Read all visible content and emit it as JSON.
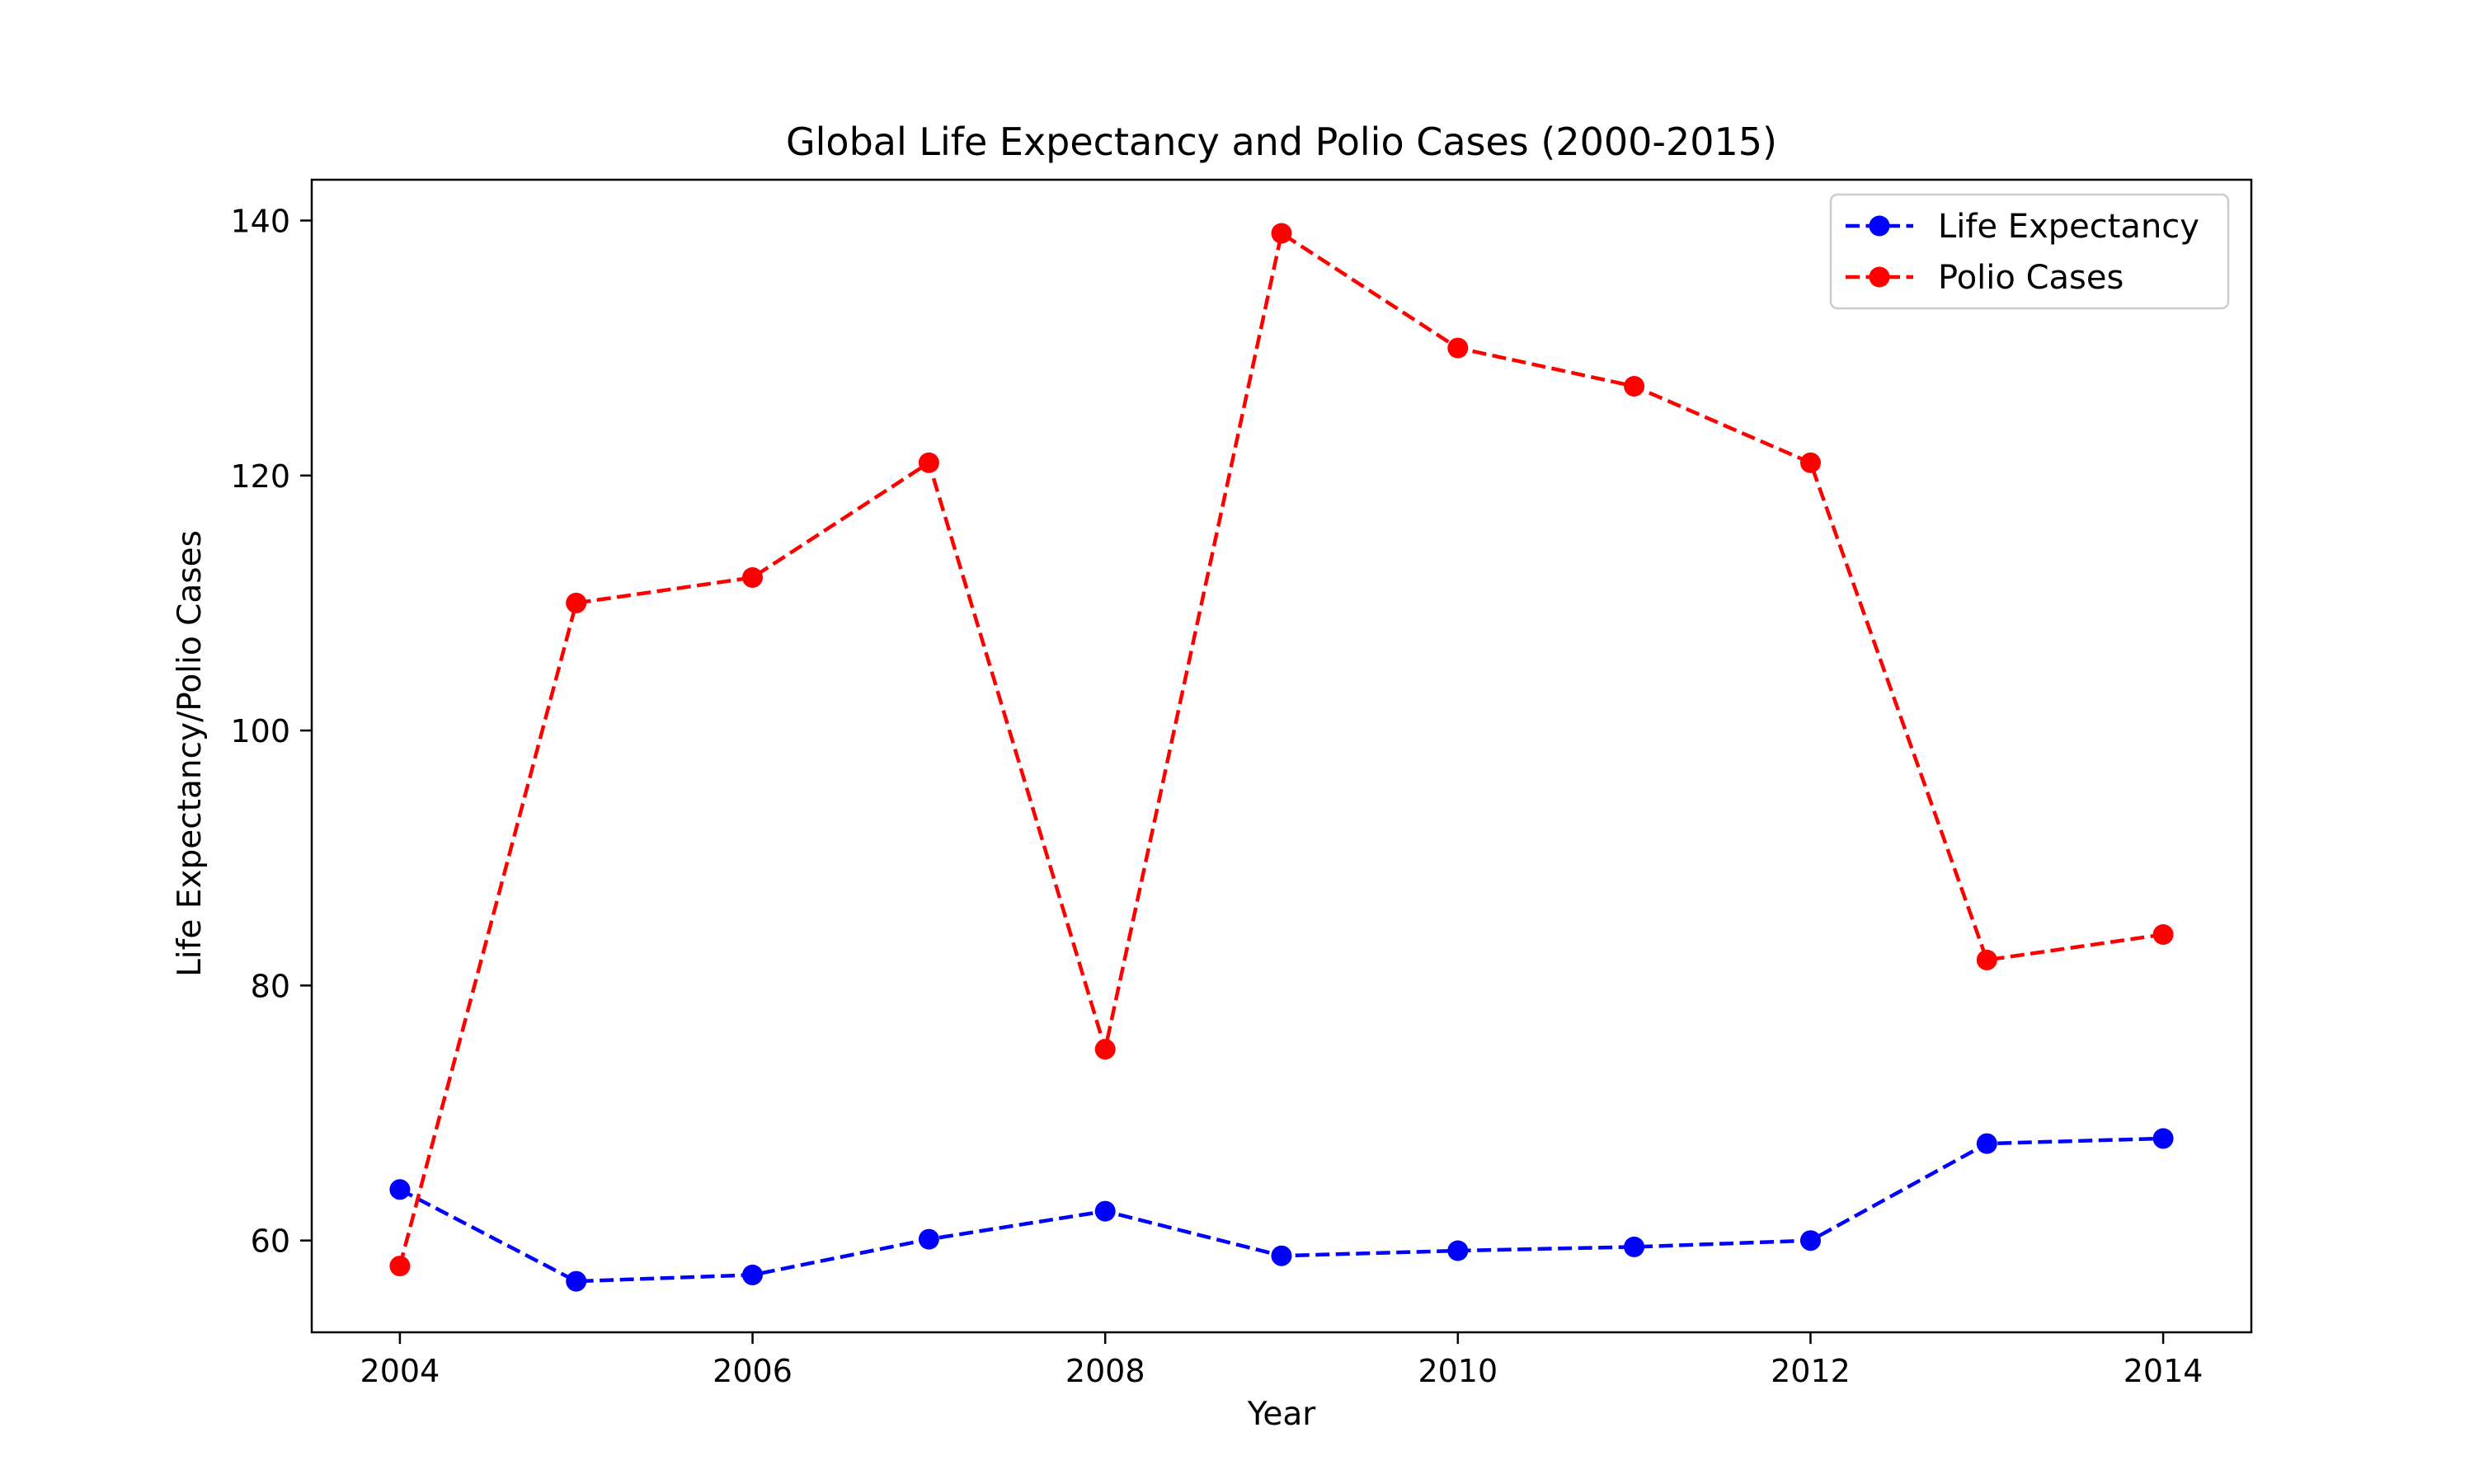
{
  "chart_data": {
    "type": "line",
    "title": "Global Life Expectancy and Polio Cases (2000-2015)",
    "xlabel": "Year",
    "ylabel": "Life Expectancy/Polio Cases",
    "x": [
      2004,
      2005,
      2006,
      2007,
      2008,
      2009,
      2010,
      2011,
      2012,
      2013,
      2014
    ],
    "xlim": [
      2003.5,
      2014.5
    ],
    "ylim": [
      52.8,
      143.2
    ],
    "xticks": [
      2004,
      2006,
      2008,
      2010,
      2012,
      2014
    ],
    "yticks": [
      60,
      80,
      100,
      120,
      140
    ],
    "series": [
      {
        "name": "Life Expectancy",
        "color": "#0000ff",
        "linestyle": "dashed",
        "marker": "circle",
        "values": [
          64.0,
          56.8,
          57.3,
          60.1,
          62.3,
          58.8,
          59.2,
          59.5,
          60.0,
          67.6,
          68.0
        ]
      },
      {
        "name": "Polio Cases",
        "color": "#ff0000",
        "linestyle": "dashed",
        "marker": "circle",
        "values": [
          58,
          110,
          112,
          121,
          75,
          139,
          130,
          127,
          121,
          82,
          84
        ]
      }
    ],
    "grid": false,
    "legend_position": "top-right"
  }
}
